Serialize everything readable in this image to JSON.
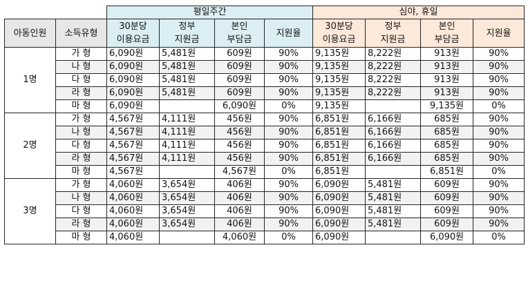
{
  "header": {
    "group_day": "평일주간",
    "group_night": "심야, 휴일",
    "col_children": "아동인원",
    "col_income": "소득유형",
    "col_fee": [
      "30분당",
      "이용요금"
    ],
    "col_gov": [
      "정부",
      "지원금"
    ],
    "col_self": [
      "본인",
      "부담금"
    ],
    "col_rate": "지원율"
  },
  "groups": [
    {
      "label": "1명",
      "rows": [
        {
          "type": "가 형",
          "day": [
            "6,090원",
            "5,481원",
            "609원",
            "90%"
          ],
          "night": [
            "9,135원",
            "8,222원",
            "913원",
            "90%"
          ]
        },
        {
          "type": "나 형",
          "day": [
            "6,090원",
            "5,481원",
            "609원",
            "90%"
          ],
          "night": [
            "9,135원",
            "8,222원",
            "913원",
            "90%"
          ]
        },
        {
          "type": "다 형",
          "day": [
            "6,090원",
            "5,481원",
            "609원",
            "90%"
          ],
          "night": [
            "9,135원",
            "8,222원",
            "913원",
            "90%"
          ]
        },
        {
          "type": "라 형",
          "day": [
            "6,090원",
            "5,481원",
            "609원",
            "90%"
          ],
          "night": [
            "9,135원",
            "8,222원",
            "913원",
            "90%"
          ]
        },
        {
          "type": "마 형",
          "day": [
            "6,090원",
            "",
            "6,090원",
            "0%"
          ],
          "night": [
            "9,135원",
            "",
            "9,135원",
            "0%"
          ]
        }
      ]
    },
    {
      "label": "2명",
      "rows": [
        {
          "type": "가 형",
          "day": [
            "4,567원",
            "4,111원",
            "456원",
            "90%"
          ],
          "night": [
            "6,851원",
            "6,166원",
            "685원",
            "90%"
          ]
        },
        {
          "type": "나 형",
          "day": [
            "4,567원",
            "4,111원",
            "456원",
            "90%"
          ],
          "night": [
            "6,851원",
            "6,166원",
            "685원",
            "90%"
          ]
        },
        {
          "type": "다 형",
          "day": [
            "4,567원",
            "4,111원",
            "456원",
            "90%"
          ],
          "night": [
            "6,851원",
            "6,166원",
            "685원",
            "90%"
          ]
        },
        {
          "type": "라 형",
          "day": [
            "4,567원",
            "4,111원",
            "456원",
            "90%"
          ],
          "night": [
            "6,851원",
            "6,166원",
            "685원",
            "90%"
          ]
        },
        {
          "type": "마 형",
          "day": [
            "4,567원",
            "",
            "4,567원",
            "0%"
          ],
          "night": [
            "6,851원",
            "",
            "6,851원",
            "0%"
          ]
        }
      ]
    },
    {
      "label": "3명",
      "rows": [
        {
          "type": "가 형",
          "day": [
            "4,060원",
            "3,654원",
            "406원",
            "90%"
          ],
          "night": [
            "6,090원",
            "5,481원",
            "609원",
            "90%"
          ]
        },
        {
          "type": "나 형",
          "day": [
            "4,060원",
            "3,654원",
            "406원",
            "90%"
          ],
          "night": [
            "6,090원",
            "5,481원",
            "609원",
            "90%"
          ]
        },
        {
          "type": "다 형",
          "day": [
            "4,060원",
            "3,654원",
            "406원",
            "90%"
          ],
          "night": [
            "6,090원",
            "5,481원",
            "609원",
            "90%"
          ]
        },
        {
          "type": "라 형",
          "day": [
            "4,060원",
            "3,654원",
            "406원",
            "90%"
          ],
          "night": [
            "6,090원",
            "5,481원",
            "609원",
            "90%"
          ]
        },
        {
          "type": "마 형",
          "day": [
            "4,060원",
            "",
            "4,060원",
            "0%"
          ],
          "night": [
            "6,090원",
            "",
            "6,090원",
            "0%"
          ]
        }
      ]
    }
  ],
  "colors": {
    "day_header": "#daeef3",
    "night_header": "#fde9d9",
    "gray_header": "#e7e7e7",
    "zebra": "#f2f2f2"
  }
}
